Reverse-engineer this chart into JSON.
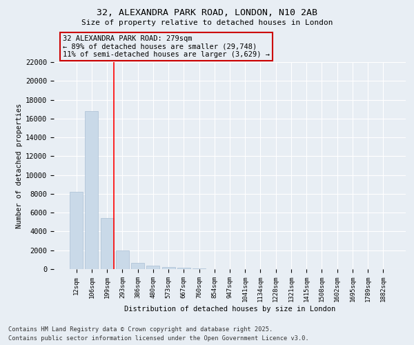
{
  "title_line1": "32, ALEXANDRA PARK ROAD, LONDON, N10 2AB",
  "title_line2": "Size of property relative to detached houses in London",
  "xlabel": "Distribution of detached houses by size in London",
  "ylabel": "Number of detached properties",
  "categories": [
    "12sqm",
    "106sqm",
    "199sqm",
    "293sqm",
    "386sqm",
    "480sqm",
    "573sqm",
    "667sqm",
    "760sqm",
    "854sqm",
    "947sqm",
    "1041sqm",
    "1134sqm",
    "1228sqm",
    "1321sqm",
    "1415sqm",
    "1508sqm",
    "1602sqm",
    "1695sqm",
    "1789sqm",
    "1882sqm"
  ],
  "values": [
    8200,
    16800,
    5400,
    1950,
    650,
    350,
    200,
    130,
    85,
    0,
    0,
    0,
    0,
    0,
    0,
    0,
    0,
    0,
    0,
    0,
    0
  ],
  "bar_color": "#c9d9e8",
  "bar_edgecolor": "#aabfd4",
  "redline_x": 2.43,
  "annotation_text": "32 ALEXANDRA PARK ROAD: 279sqm\n← 89% of detached houses are smaller (29,748)\n11% of semi-detached houses are larger (3,629) →",
  "annotation_box_edgecolor": "#cc0000",
  "ylim_max": 22000,
  "yticks": [
    0,
    2000,
    4000,
    6000,
    8000,
    10000,
    12000,
    14000,
    16000,
    18000,
    20000,
    22000
  ],
  "bg_color": "#e8eef4",
  "grid_color": "#ffffff",
  "footer_line1": "Contains HM Land Registry data © Crown copyright and database right 2025.",
  "footer_line2": "Contains public sector information licensed under the Open Government Licence v3.0."
}
